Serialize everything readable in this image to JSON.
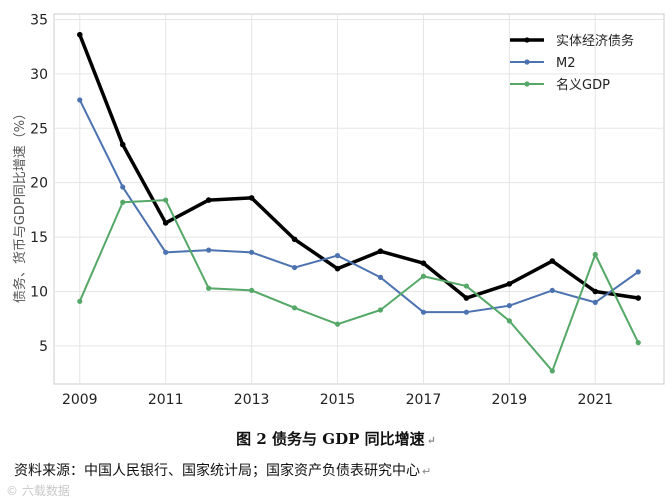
{
  "chart_data": {
    "type": "line",
    "x": [
      2009,
      2010,
      2011,
      2012,
      2013,
      2014,
      2015,
      2016,
      2017,
      2018,
      2019,
      2020,
      2021,
      2022
    ],
    "x_ticks": [
      2009,
      2011,
      2013,
      2015,
      2017,
      2019,
      2021
    ],
    "y_ticks": [
      5,
      10,
      15,
      20,
      25,
      30,
      35
    ],
    "xlim": [
      2008.4,
      2022.6
    ],
    "ylim": [
      1.5,
      35.5
    ],
    "grid": true,
    "legend_position": "top-right",
    "ylabel": "债务、货币与GDP同比增速（%）",
    "series": [
      {
        "name": "实体经济债务",
        "color": "#000000",
        "line_width": 3.5,
        "values": [
          33.6,
          23.5,
          16.3,
          18.4,
          18.6,
          14.8,
          12.1,
          13.7,
          12.6,
          9.4,
          10.7,
          12.8,
          10.0,
          9.4
        ]
      },
      {
        "name": "M2",
        "color": "#4c72b0",
        "line_width": 2,
        "values": [
          27.6,
          19.6,
          13.6,
          13.8,
          13.6,
          12.2,
          13.3,
          11.3,
          8.1,
          8.1,
          8.7,
          10.1,
          9.0,
          11.8
        ]
      },
      {
        "name": "名义GDP",
        "color": "#55a868",
        "line_width": 2,
        "values": [
          9.1,
          18.2,
          18.4,
          10.3,
          10.1,
          8.5,
          7.0,
          8.3,
          11.4,
          10.5,
          7.3,
          2.7,
          13.4,
          5.3
        ]
      }
    ]
  },
  "caption": "图 2  债务与 GDP 同比增速",
  "source": "资料来源：中国人民银行、国家统计局；国家资产负债表研究中心",
  "watermark": "© 六载数据",
  "para_mark": "↵"
}
